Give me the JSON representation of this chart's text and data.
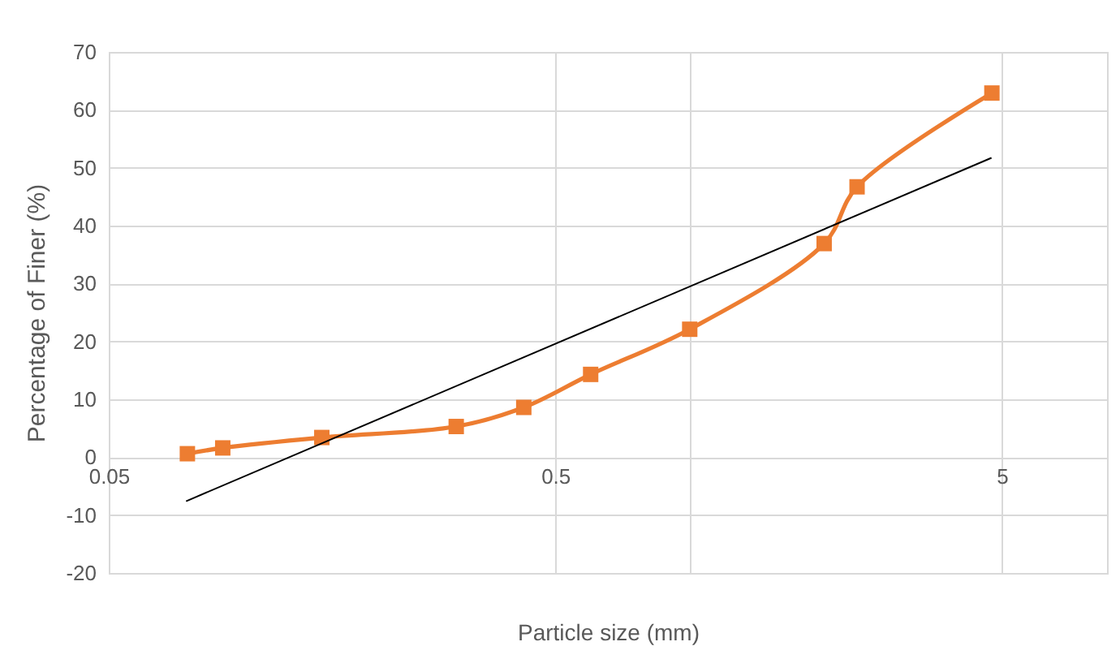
{
  "chart_data": {
    "type": "line",
    "xlabel": "Particle size (mm)",
    "ylabel": "Percentage of Finer (%)",
    "log": "x",
    "grid": true,
    "marker": "square",
    "xlim": [
      0.05,
      8.6
    ],
    "xticks": [
      0.05,
      0.5,
      {
        "value": 1,
        "label": null
      },
      5
    ],
    "ylim": [
      -20,
      70
    ],
    "yticks": [
      -20,
      -10,
      0,
      10,
      20,
      30,
      40,
      50,
      60,
      70
    ],
    "series": [
      {
        "color": "#ed7d31",
        "x": [
          0.075,
          0.09,
          0.15,
          0.3,
          0.425,
          0.6,
          1.0,
          2.0,
          2.37,
          4.75
        ],
        "values": [
          0.6,
          1.6,
          3.4,
          5.3,
          8.6,
          14.3,
          22.1,
          36.9,
          46.7,
          62.9
        ]
      },
      {
        "type": "line",
        "marker": "none",
        "color": "#000000",
        "x": [
          0.0745,
          4.74
        ],
        "values": [
          -7.6,
          51.7
        ]
      }
    ]
  }
}
